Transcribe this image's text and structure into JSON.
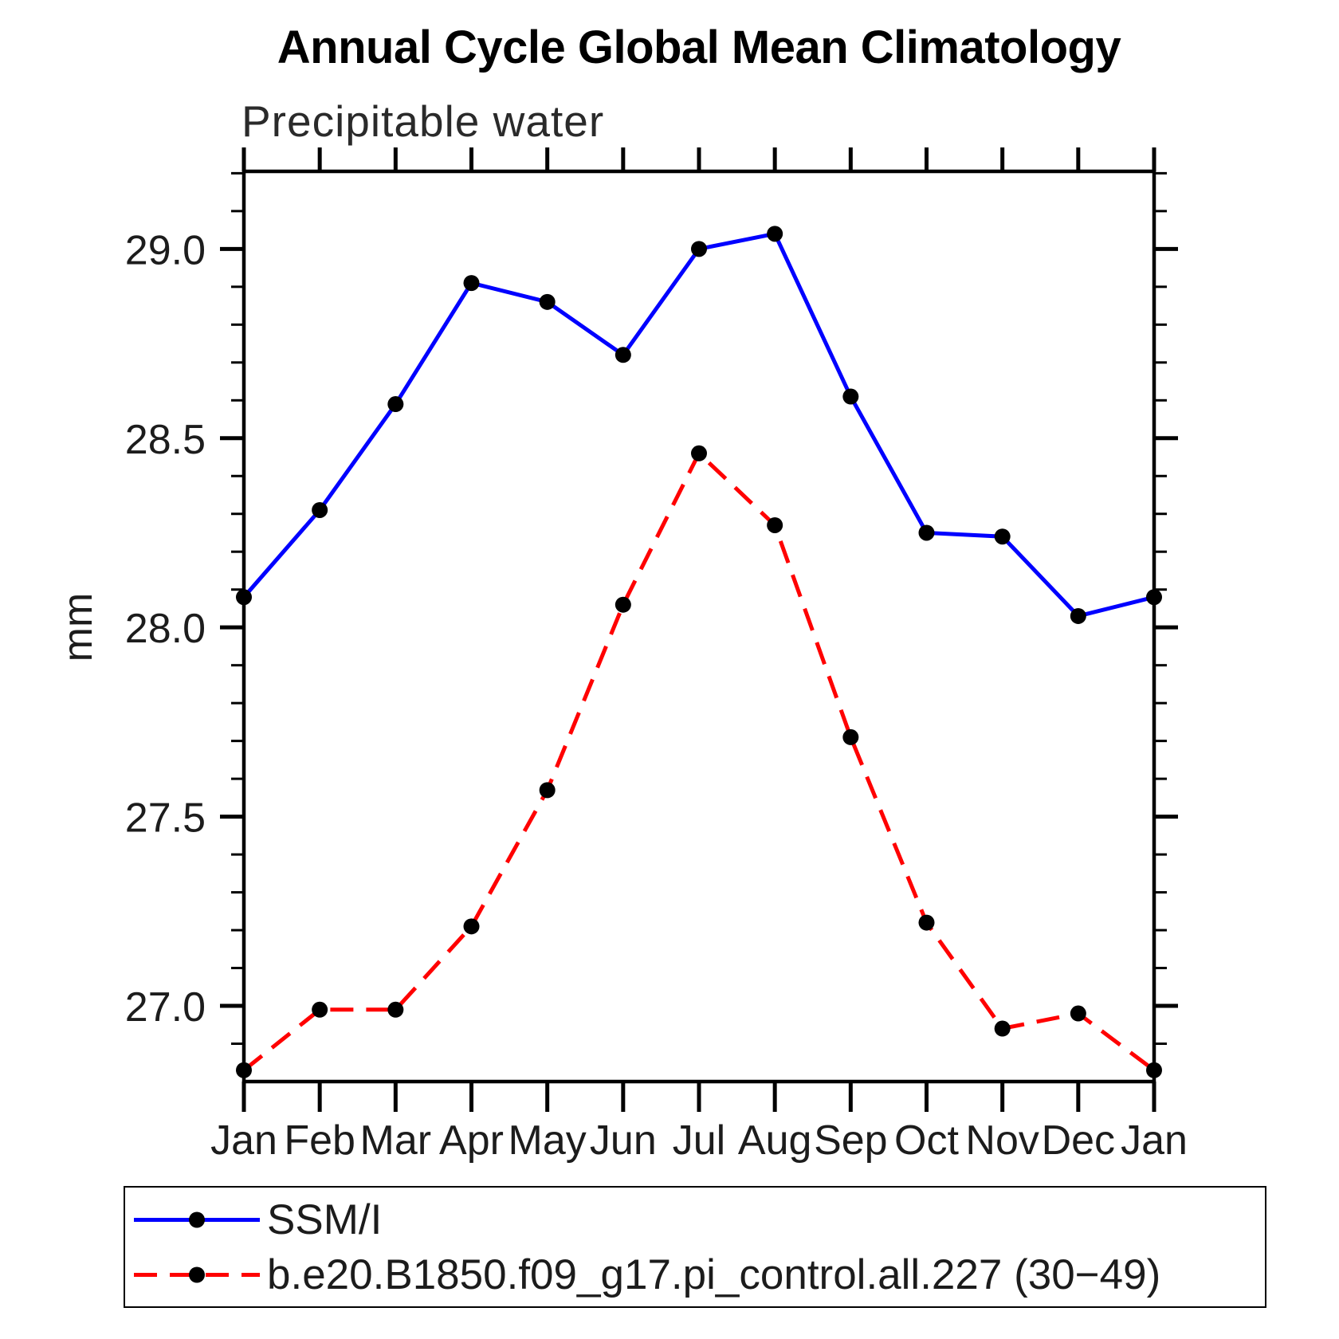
{
  "chart_data": {
    "type": "line",
    "title": "Annual Cycle Global Mean Climatology",
    "subtitle": "Precipitable water",
    "ylabel": "mm",
    "xlabel": "",
    "x_tick_labels": [
      "Jan",
      "Feb",
      "Mar",
      "Apr",
      "May",
      "Jun",
      "Jul",
      "Aug",
      "Sep",
      "Oct",
      "Nov",
      "Dec",
      "Jan"
    ],
    "y_tick_labels": [
      "27.0",
      "27.5",
      "28.0",
      "28.5",
      "29.0"
    ],
    "ylim": [
      26.8,
      29.205
    ],
    "y_major_step": 0.5,
    "y_minor_step": 0.1,
    "grid": false,
    "legend_position": "bottom-left-box",
    "marker_color": "#000000",
    "axis_color": "#000000",
    "series": [
      {
        "name": "SSM/I",
        "color": "#0000ff",
        "style": "solid",
        "marker": "circle",
        "values": [
          28.08,
          28.31,
          28.59,
          28.91,
          28.86,
          28.72,
          29.0,
          29.04,
          28.61,
          28.25,
          28.24,
          28.03,
          28.08
        ]
      },
      {
        "name": "b.e20.B1850.f09_g17.pi_control.all.227 (30−49)",
        "color": "#ff0000",
        "style": "dashed",
        "marker": "circle",
        "values": [
          26.83,
          26.99,
          26.99,
          27.21,
          27.57,
          28.06,
          28.46,
          28.27,
          27.71,
          27.22,
          26.94,
          26.98,
          26.83
        ]
      }
    ]
  }
}
